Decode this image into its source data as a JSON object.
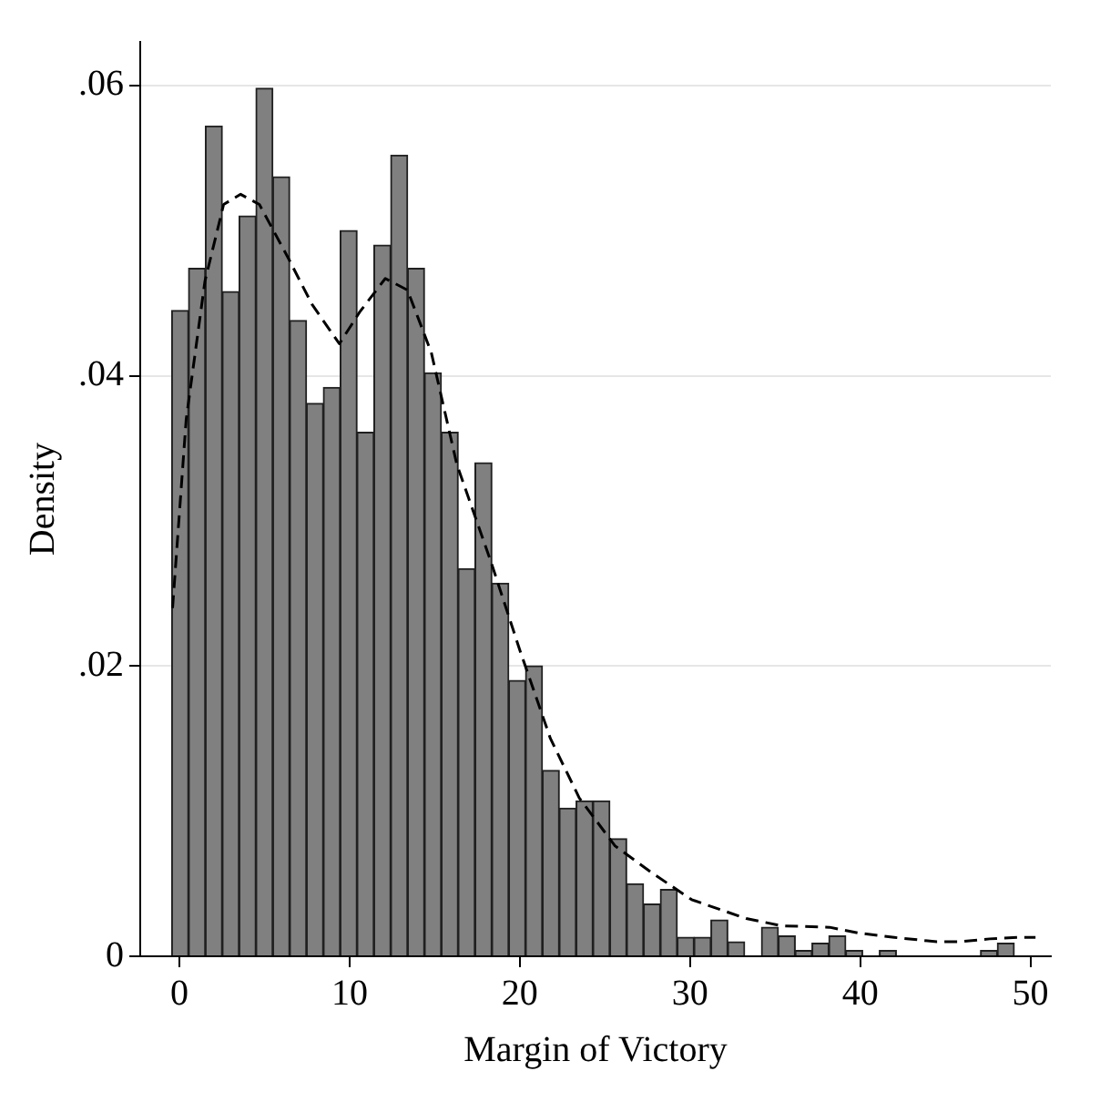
{
  "chart_data": {
    "type": "histogram",
    "xlabel": "Margin of Victory",
    "ylabel": "Density",
    "bins": [
      -0.45,
      0.54,
      1.53,
      2.52,
      3.51,
      4.5,
      5.49,
      6.48,
      7.47,
      8.46,
      9.45,
      10.44,
      11.43,
      12.42,
      13.41,
      14.4,
      15.39,
      16.38,
      17.37,
      18.36,
      19.35,
      20.34,
      21.33,
      22.32,
      23.31,
      24.3,
      25.29,
      26.28,
      27.27,
      28.26,
      29.25,
      30.24,
      31.23,
      32.22,
      33.21,
      34.2,
      35.19,
      36.18,
      37.17,
      38.16,
      39.15,
      40.14,
      41.13,
      42.12,
      43.11,
      44.1,
      45.09,
      46.08,
      47.07,
      48.06,
      49.05
    ],
    "values": [
      0.0445,
      0.0474,
      0.0572,
      0.0458,
      0.051,
      0.0598,
      0.0537,
      0.0438,
      0.0381,
      0.0392,
      0.05,
      0.0361,
      0.049,
      0.0552,
      0.0474,
      0.0402,
      0.0361,
      0.0267,
      0.034,
      0.0257,
      0.019,
      0.02,
      0.0128,
      0.0102,
      0.0107,
      0.0107,
      0.0081,
      0.005,
      0.0036,
      0.0046,
      0.0013,
      0.0013,
      0.0025,
      0.001,
      0,
      0.002,
      0.0014,
      0.0004,
      0.0009,
      0.0014,
      0.0004,
      0,
      0.0004,
      0,
      0,
      0,
      0,
      0,
      0.0004,
      0.0009
    ],
    "color": "#808080",
    "series": [
      {
        "type": "line",
        "color": "#000000",
        "line_style": "dashed",
        "marker": "none",
        "x": [
          -0.4,
          0.4,
          1.5,
          2.6,
          3.6,
          4.7,
          6.4,
          7.8,
          9.4,
          10.6,
          12.1,
          13.4,
          14.8,
          16.3,
          18.3,
          20.0,
          21.8,
          23.5,
          25.6,
          27.7,
          30.1,
          33.3,
          35.4,
          38.2,
          39.9,
          42.0,
          44.5,
          45.8,
          47.6,
          49.3,
          50.3
        ],
        "values": [
          0.024,
          0.037,
          0.0465,
          0.0518,
          0.0525,
          0.0518,
          0.0481,
          0.0449,
          0.0422,
          0.0444,
          0.0467,
          0.0459,
          0.0416,
          0.0339,
          0.0272,
          0.0211,
          0.015,
          0.0109,
          0.0076,
          0.0058,
          0.0039,
          0.0026,
          0.0021,
          0.002,
          0.0016,
          0.0013,
          0.001,
          0.001,
          0.0012,
          0.0013,
          0.0013
        ]
      }
    ],
    "xlim": [
      -2.3,
      51.2
    ],
    "xticks": [
      0,
      10,
      20,
      30,
      40,
      50
    ],
    "ylim": [
      0,
      0.063
    ],
    "yticks": [
      {
        "value": 0,
        "label": "0"
      },
      {
        "value": 0.02,
        "label": ".02"
      },
      {
        "value": 0.04,
        "label": ".04"
      },
      {
        "value": 0.06,
        "label": ".06"
      }
    ],
    "grid": "y",
    "legend": false
  }
}
